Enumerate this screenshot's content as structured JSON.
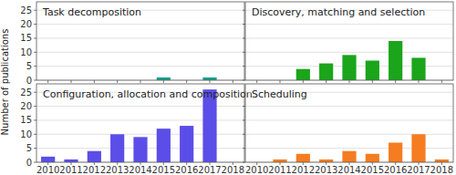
{
  "chart_data": [
    {
      "type": "bar",
      "title": "Task decomposition",
      "categories": [
        "2010",
        "2011",
        "2012",
        "2013",
        "2014",
        "2015",
        "2016",
        "2017",
        "2018"
      ],
      "values": [
        0,
        0,
        0,
        0,
        0,
        1,
        0,
        1,
        0
      ],
      "color": "#17a08a",
      "y_label": "Number of publications",
      "ylim": [
        0,
        28
      ],
      "yticks": [
        0,
        5,
        10,
        15,
        20,
        25
      ],
      "grid": true,
      "tick_labels": "y"
    },
    {
      "type": "bar",
      "title": "Discovery, matching and selection",
      "categories": [
        "2010",
        "2011",
        "2012",
        "2013",
        "2014",
        "2015",
        "2016",
        "2017",
        "2018"
      ],
      "values": [
        0,
        0,
        4,
        6,
        9,
        7,
        14,
        8,
        0
      ],
      "color": "#1aa51a",
      "ylim": [
        0,
        28
      ],
      "yticks": [
        0,
        5,
        10,
        15,
        20,
        25
      ],
      "grid": true,
      "tick_labels": false
    },
    {
      "type": "bar",
      "title": "Configuration, allocation and composition",
      "categories": [
        "2010",
        "2011",
        "2012",
        "2013",
        "2014",
        "2015",
        "2016",
        "2017",
        "2018"
      ],
      "values": [
        2,
        1,
        4,
        10,
        9,
        12,
        13,
        26,
        0
      ],
      "color": "#5b4ee8",
      "ylim": [
        0,
        28
      ],
      "yticks": [
        0,
        5,
        10,
        15,
        20,
        25
      ],
      "grid": true,
      "tick_labels": true
    },
    {
      "type": "bar",
      "title": "Scheduling",
      "categories": [
        "2010",
        "2011",
        "2012",
        "2013",
        "2014",
        "2015",
        "2016",
        "2017",
        "2018"
      ],
      "values": [
        0,
        1,
        3,
        1,
        4,
        3,
        7,
        10,
        1
      ],
      "color": "#f57c20",
      "ylim": [
        0,
        28
      ],
      "yticks": [
        0,
        5,
        10,
        15,
        20,
        25
      ],
      "grid": true,
      "tick_labels": "x"
    }
  ]
}
